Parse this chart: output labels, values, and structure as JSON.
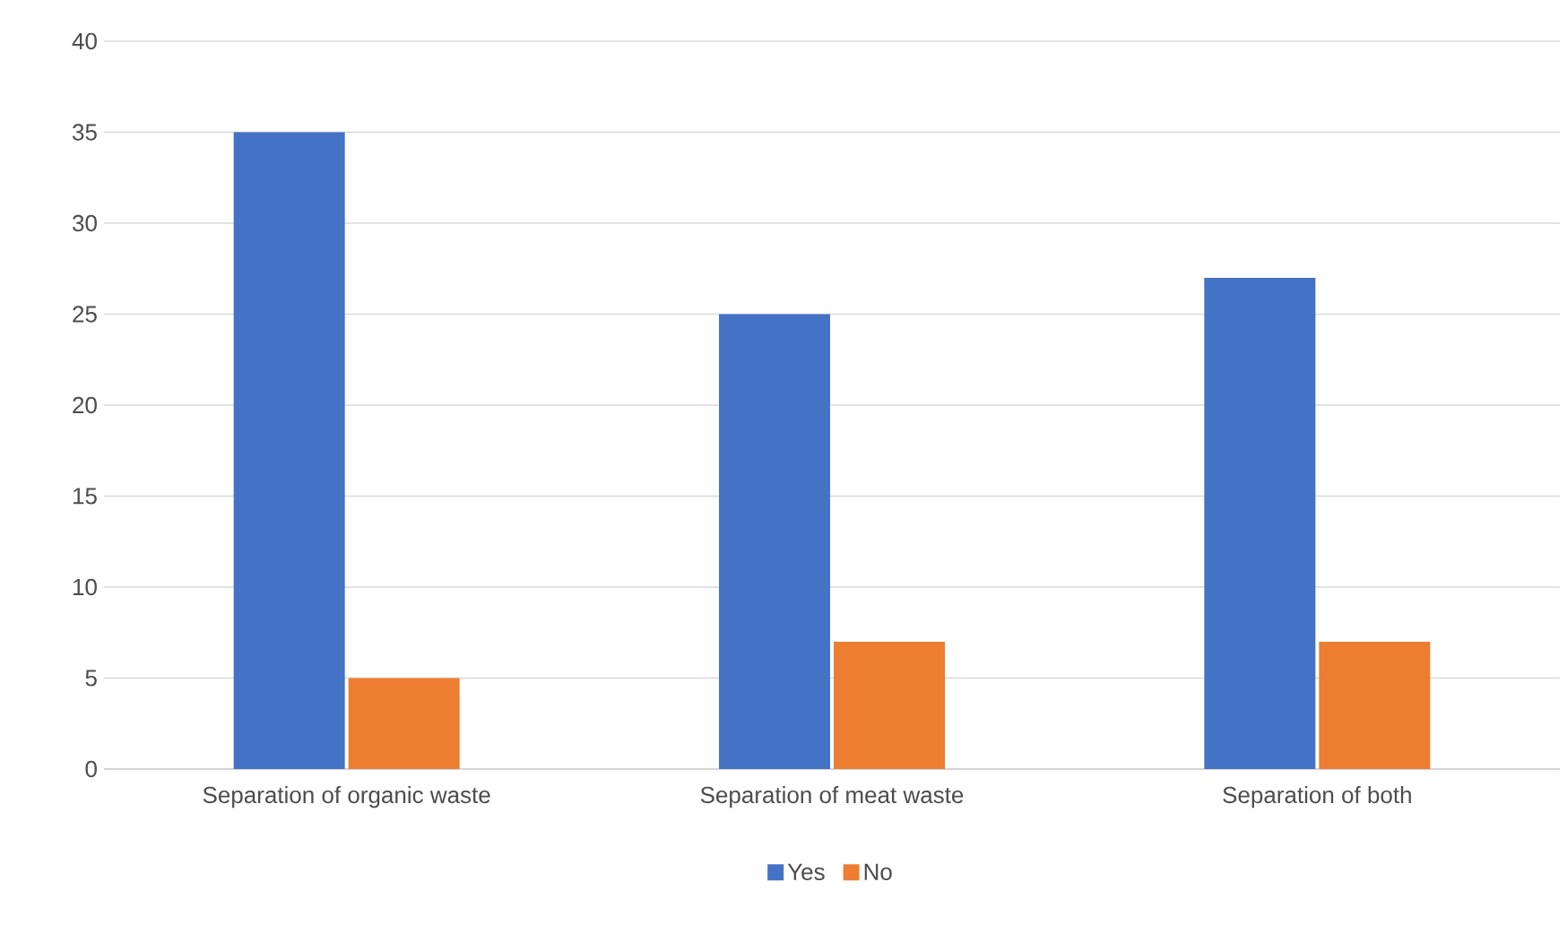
{
  "chart_data": {
    "type": "bar",
    "categories": [
      "Separation of organic waste",
      "Separation of meat waste",
      "Separation of both"
    ],
    "series": [
      {
        "name": "Yes",
        "color": "#4472c4",
        "values": [
          35,
          25,
          27
        ]
      },
      {
        "name": "No",
        "color": "#ed7d31",
        "values": [
          5,
          7,
          7
        ]
      }
    ],
    "ylim": [
      0,
      40
    ],
    "yticks": [
      0,
      5,
      10,
      15,
      20,
      25,
      30,
      35,
      40
    ],
    "grid": "y",
    "legend": "bottom"
  }
}
